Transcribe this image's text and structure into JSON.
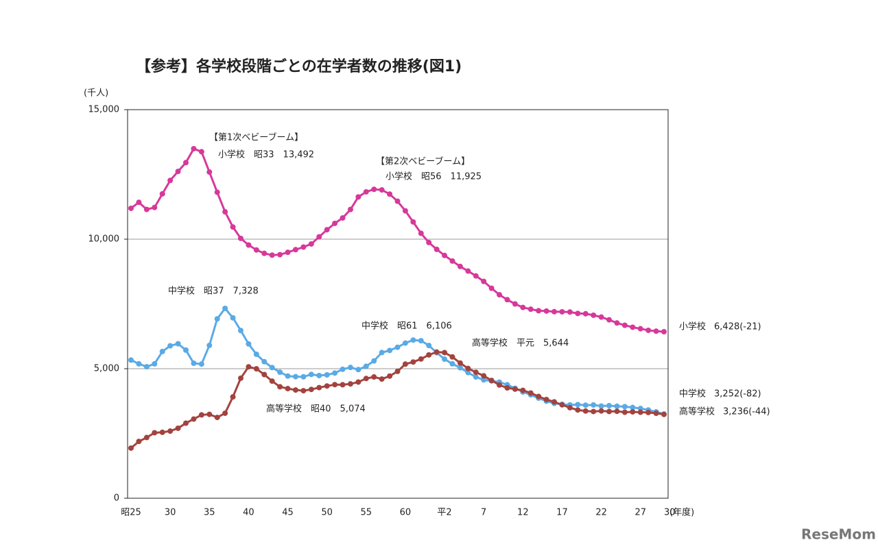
{
  "chart_data": {
    "type": "line",
    "title": "【参考】各学校段階ごとの在学者数の推移(図1)",
    "y_label": "(千人)",
    "x_label": "(年度)",
    "categories": [
      "昭25",
      null,
      null,
      null,
      null,
      "30",
      null,
      null,
      null,
      null,
      "35",
      null,
      null,
      null,
      null,
      "40",
      null,
      null,
      null,
      null,
      "45",
      null,
      null,
      null,
      null,
      "50",
      null,
      null,
      null,
      null,
      "55",
      null,
      null,
      null,
      null,
      "60",
      null,
      null,
      null,
      null,
      "平2",
      null,
      null,
      null,
      null,
      "7",
      null,
      null,
      null,
      null,
      "12",
      null,
      null,
      null,
      null,
      "17",
      null,
      null,
      null,
      null,
      "22",
      null,
      null,
      null,
      null,
      "27",
      null,
      null,
      "30"
    ],
    "ylim": [
      0,
      15000
    ],
    "yticks": [
      0,
      {
        "value": 5000,
        "label": "5,000"
      },
      {
        "value": 10000,
        "label": "10,000"
      },
      {
        "value": 15000,
        "label": "15,000"
      }
    ],
    "grid": true,
    "series": [
      {
        "name": "小学校",
        "end_label": "6,428(-21)",
        "color": "#d6399a",
        "values": [
          11191,
          11423,
          11148,
          11225,
          11750,
          12267,
          12616,
          12956,
          13492,
          13375,
          12591,
          11811,
          11057,
          10471,
          10031,
          9775,
          9584,
          9453,
          9384,
          9403,
          9493,
          9596,
          9696,
          9816,
          10089,
          10365,
          10609,
          10820,
          11146,
          11630,
          11827,
          11925,
          11902,
          11739,
          11465,
          11095,
          10666,
          10227,
          9872,
          9607,
          9373,
          9157,
          8947,
          8769,
          8583,
          8370,
          8105,
          7855,
          7664,
          7500,
          7366,
          7297,
          7239,
          7227,
          7201,
          7197,
          7188,
          7133,
          7122,
          7064,
          6993,
          6887,
          6765,
          6677,
          6601,
          6543,
          6483,
          6449,
          6428
        ]
      },
      {
        "name": "中学校",
        "end_label": "3,252(-82)",
        "color": "#5aaae6",
        "values": [
          5333,
          5188,
          5076,
          5187,
          5664,
          5884,
          5963,
          5718,
          5210,
          5180,
          5900,
          6925,
          7328,
          6964,
          6475,
          5957,
          5556,
          5271,
          5044,
          4865,
          4717,
          4694,
          4689,
          4779,
          4736,
          4762,
          4833,
          4978,
          5048,
          4966,
          5094,
          5300,
          5624,
          5706,
          5828,
          5990,
          6106,
          6081,
          5896,
          5619,
          5369,
          5188,
          5037,
          4850,
          4681,
          4570,
          4528,
          4481,
          4381,
          4244,
          4104,
          3992,
          3863,
          3748,
          3663,
          3626,
          3602,
          3615,
          3592,
          3600,
          3558,
          3574,
          3552,
          3536,
          3504,
          3465,
          3406,
          3333,
          3252
        ]
      },
      {
        "name": "高等学校",
        "end_label": "3,236(-44)",
        "color": "#a3433e",
        "values": [
          1935,
          2193,
          2343,
          2528,
          2545,
          2592,
          2702,
          2898,
          3057,
          3216,
          3239,
          3119,
          3282,
          3912,
          4634,
          5074,
          4997,
          4775,
          4521,
          4303,
          4232,
          4178,
          4151,
          4201,
          4270,
          4333,
          4386,
          4381,
          4414,
          4485,
          4622,
          4682,
          4601,
          4716,
          4896,
          5178,
          5259,
          5375,
          5534,
          5644,
          5623,
          5455,
          5218,
          5010,
          4862,
          4725,
          4547,
          4371,
          4258,
          4212,
          4165,
          4062,
          3929,
          3810,
          3719,
          3605,
          3494,
          3407,
          3368,
          3347,
          3369,
          3349,
          3355,
          3320,
          3334,
          3319,
          3309,
          3280,
          3236
        ]
      }
    ],
    "annotations": [
      "【第1次ベビーブーム】",
      "小学校　昭33　13,492",
      "【第2次ベビーブーム】",
      "小学校　昭56　11,925",
      "中学校　昭37　7,328",
      "中学校　昭61　6,106",
      "高等学校　平元　5,644",
      "高等学校　昭40　5,074"
    ],
    "watermark": "ReseMom"
  }
}
